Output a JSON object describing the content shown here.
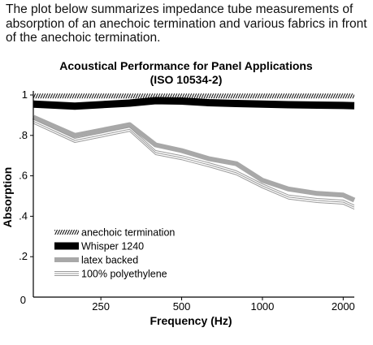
{
  "intro_text": "The plot below summarizes impedance tube measurements of absorption of an anechoic termination and various fabrics in front of the anechoic termination.",
  "chart_data": {
    "type": "line",
    "title": "Acoustical Performance for Panel Applications",
    "subtitle": "(ISO 10534-2)",
    "xlabel": "Frequency (Hz)",
    "ylabel": "Absorption",
    "xlim": [
      140,
      2200
    ],
    "ylim": [
      0,
      1.0
    ],
    "x_ticks": [
      250,
      500,
      1000,
      2000
    ],
    "x_tick_labels": [
      "250",
      "500",
      "1000",
      "2000"
    ],
    "y_ticks": [
      0,
      0.2,
      0.4,
      0.6,
      0.8,
      1.0
    ],
    "y_tick_labels": [
      "0",
      ".2",
      ".4",
      ".6",
      ".8",
      "1"
    ],
    "grid": false,
    "legend_position": "bottom-left",
    "x": [
      140,
      200,
      320,
      400,
      500,
      630,
      800,
      1000,
      1250,
      1600,
      2000,
      2200
    ],
    "series": [
      {
        "name": "anechoic termination",
        "style": "hatched",
        "values": [
          0.995,
          0.995,
          0.995,
          0.995,
          0.995,
          0.995,
          0.995,
          0.995,
          0.995,
          0.995,
          0.995,
          0.995
        ]
      },
      {
        "name": "Whisper 1240",
        "style": "thick-black",
        "values": [
          0.955,
          0.945,
          0.96,
          0.972,
          0.97,
          0.962,
          0.958,
          0.955,
          0.952,
          0.95,
          0.948,
          0.947
        ]
      },
      {
        "name": "latex backed",
        "style": "thick-gray",
        "values": [
          0.89,
          0.8,
          0.853,
          0.753,
          0.725,
          0.685,
          0.66,
          0.578,
          0.535,
          0.513,
          0.505,
          0.48
        ]
      },
      {
        "name": "100% polyethylene",
        "style": "triple-line",
        "values": [
          0.87,
          0.775,
          0.83,
          0.715,
          0.69,
          0.655,
          0.615,
          0.55,
          0.495,
          0.478,
          0.47,
          0.445
        ]
      }
    ]
  },
  "colors": {
    "black": "#000000",
    "latex": "#a8a8a8",
    "poly": "#9a9a9a"
  }
}
